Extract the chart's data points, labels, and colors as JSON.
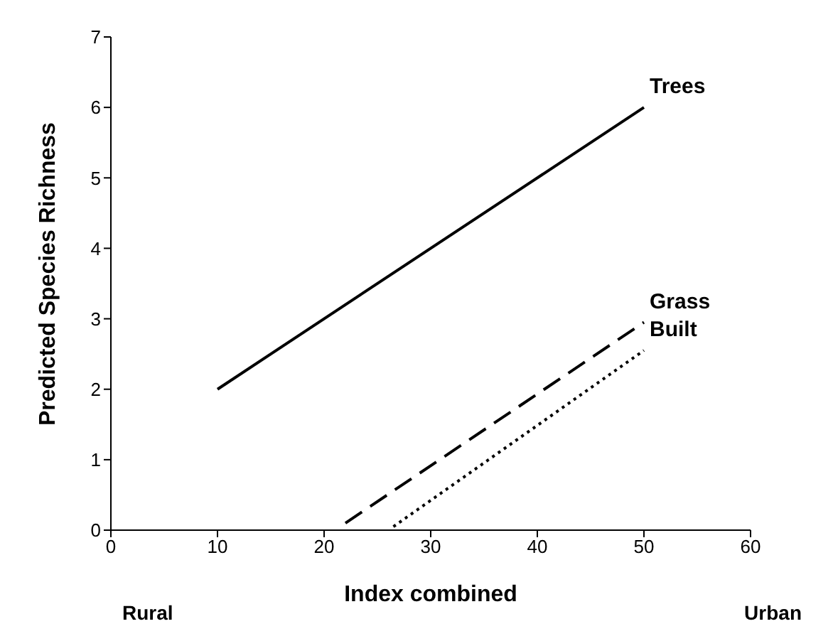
{
  "chart_data": {
    "type": "line",
    "xlabel": "Index combined",
    "ylabel": "Predicted Species Richness",
    "xlim": [
      0,
      60
    ],
    "xticks": [
      0,
      10,
      20,
      30,
      40,
      50,
      60
    ],
    "ylim": [
      0,
      7
    ],
    "yticks": [
      0,
      1,
      2,
      3,
      4,
      5,
      6,
      7
    ],
    "grid": false,
    "legend": false,
    "marker": "none",
    "annotations": [
      "Rural",
      "Urban"
    ],
    "series": [
      {
        "name": "Trees",
        "color": "#000000",
        "line_style": "solid",
        "x": [
          10,
          50
        ],
        "values": [
          2,
          6
        ]
      },
      {
        "name": "Grass",
        "color": "#000000",
        "line_style": "dashed",
        "x": [
          22,
          50
        ],
        "values": [
          0.1,
          2.95
        ]
      },
      {
        "name": "Built",
        "color": "#000000",
        "line_style": "dotted",
        "x": [
          26.5,
          50
        ],
        "values": [
          0.05,
          2.55
        ]
      }
    ]
  }
}
